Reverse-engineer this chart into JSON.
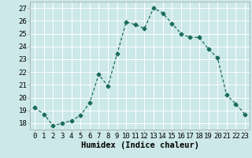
{
  "x": [
    0,
    1,
    2,
    3,
    4,
    5,
    6,
    7,
    8,
    9,
    10,
    11,
    12,
    13,
    14,
    15,
    16,
    17,
    18,
    19,
    20,
    21,
    22,
    23
  ],
  "y": [
    19.2,
    18.7,
    17.8,
    18.0,
    18.2,
    18.6,
    19.6,
    21.8,
    20.9,
    23.4,
    25.9,
    25.7,
    25.4,
    27.0,
    26.6,
    25.8,
    25.0,
    24.7,
    24.7,
    23.8,
    23.1,
    20.2,
    19.5,
    18.7
  ],
  "line_color": "#1a6b5a",
  "marker": "D",
  "markersize": 2.5,
  "bg_color": "#cce8e8",
  "grid_color": "#ffffff",
  "xlabel": "Humidex (Indice chaleur)",
  "xlim": [
    -0.5,
    23.5
  ],
  "ylim": [
    17.5,
    27.5
  ],
  "yticks": [
    18,
    19,
    20,
    21,
    22,
    23,
    24,
    25,
    26,
    27
  ],
  "xticks": [
    0,
    1,
    2,
    3,
    4,
    5,
    6,
    7,
    8,
    9,
    10,
    11,
    12,
    13,
    14,
    15,
    16,
    17,
    18,
    19,
    20,
    21,
    22,
    23
  ],
  "xlabel_fontsize": 7.5,
  "tick_fontsize": 6.5
}
